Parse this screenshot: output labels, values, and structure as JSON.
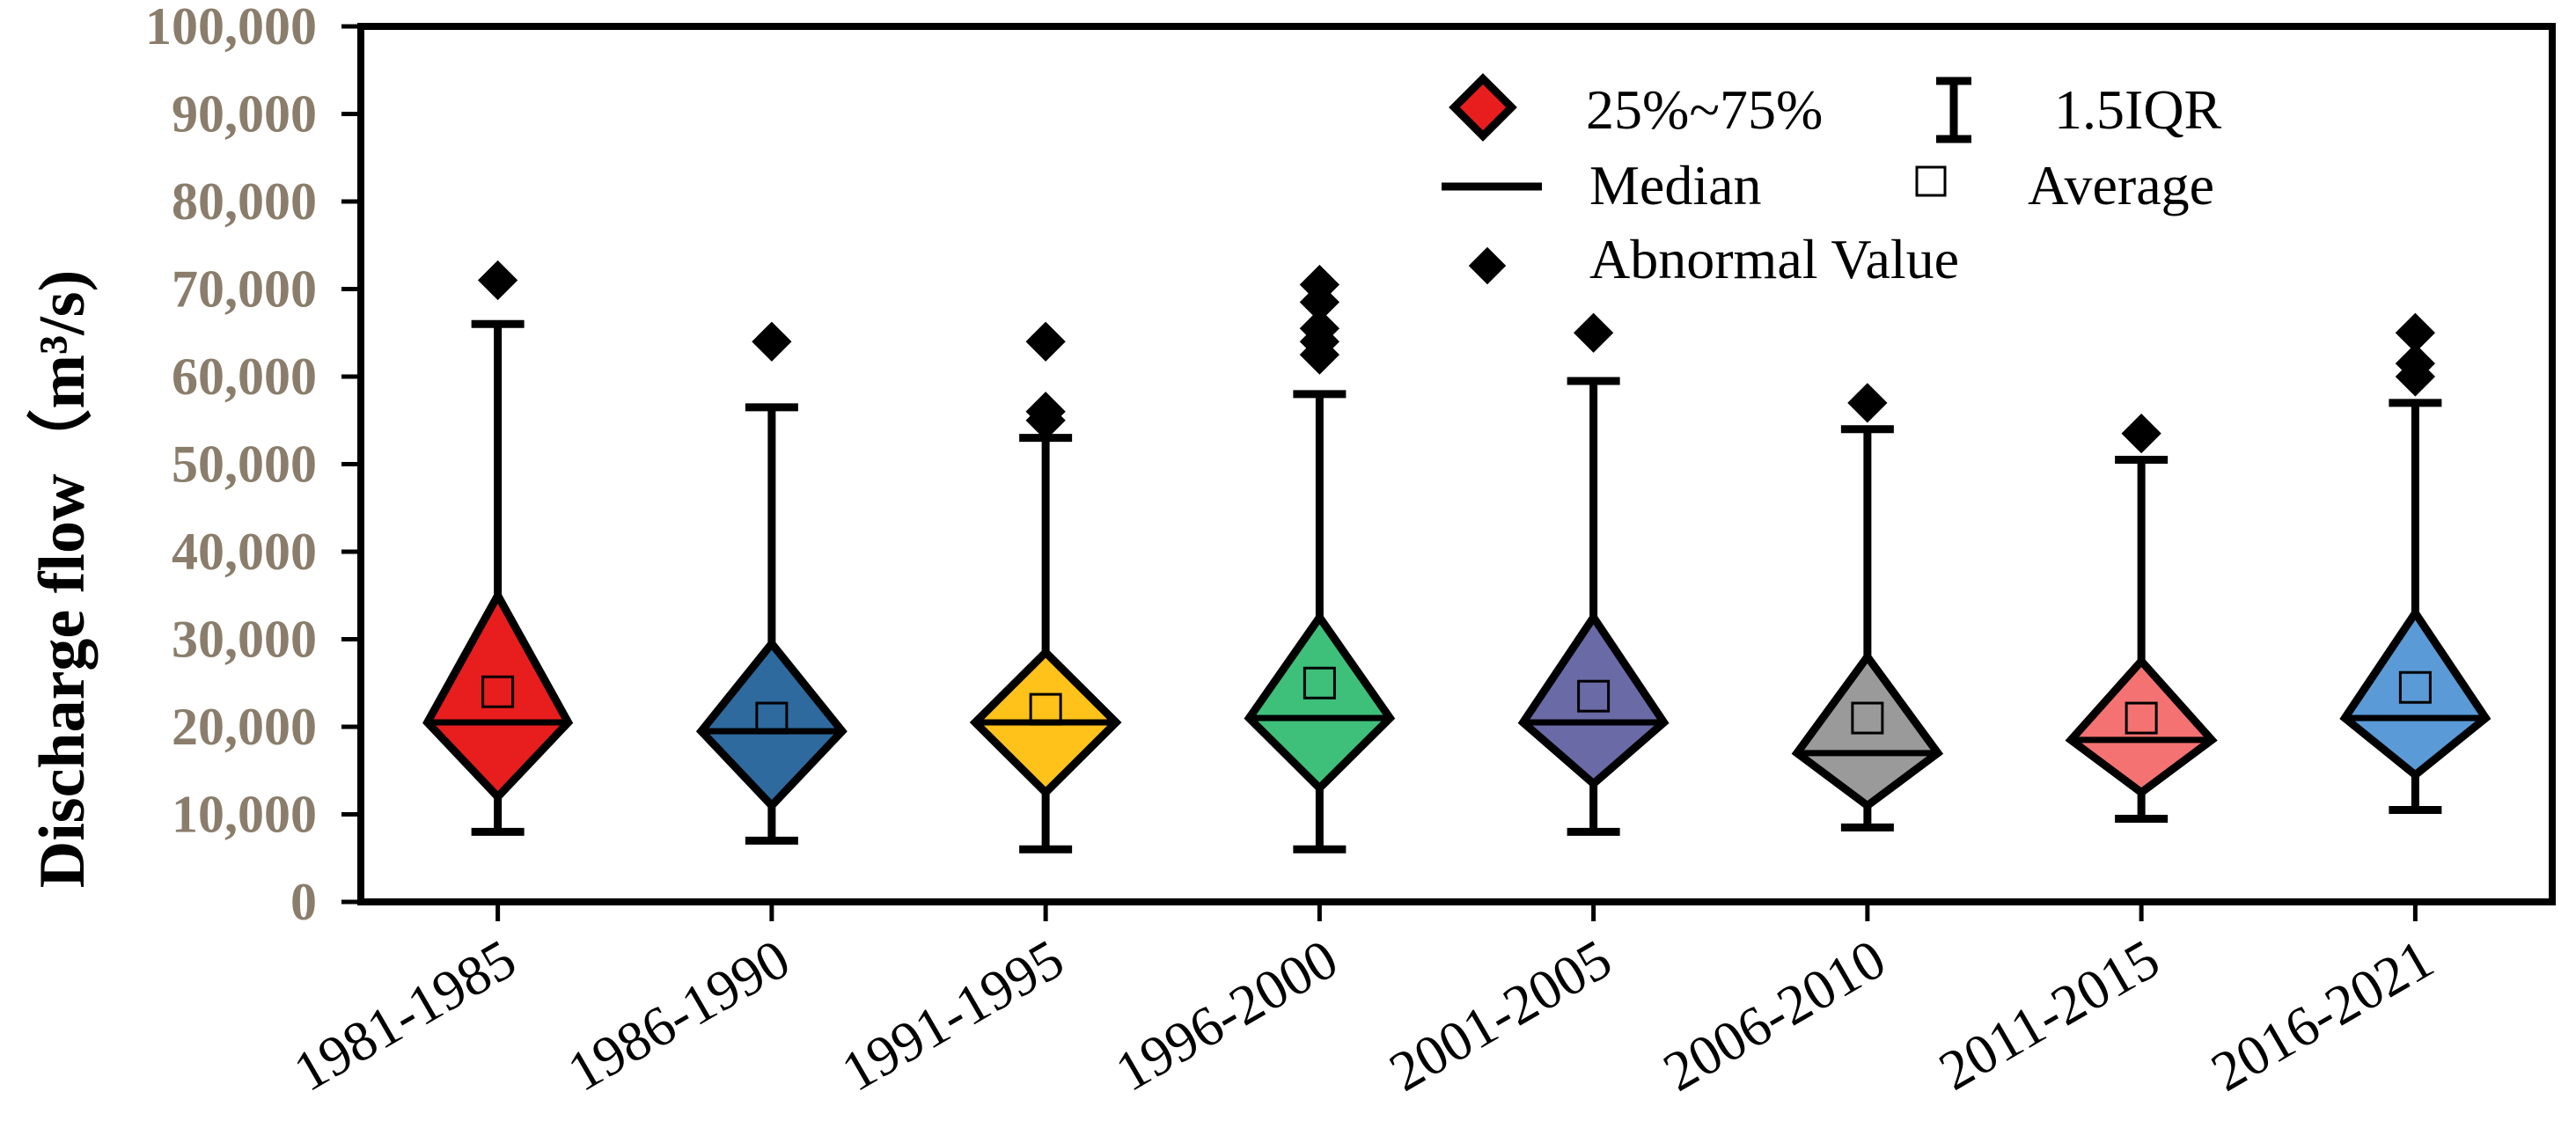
{
  "chart_data": {
    "type": "box",
    "title": "",
    "xlabel": "",
    "ylabel": "Discharge flow（m³/s)",
    "ylim": [
      0,
      100000
    ],
    "yticks": [
      0,
      10000,
      20000,
      30000,
      40000,
      50000,
      60000,
      70000,
      80000,
      90000,
      100000
    ],
    "ytick_labels": [
      "0",
      "10,000",
      "20,000",
      "30,000",
      "40,000",
      "50,000",
      "60,000",
      "70,000",
      "80,000",
      "90,000",
      "100,000"
    ],
    "categories": [
      "1981-1985",
      "1986-1990",
      "1991-1995",
      "1996-2000",
      "2001-2005",
      "2006-2010",
      "2011-2015",
      "2016-2021"
    ],
    "colors": [
      "#e81e1e",
      "#2e6a9e",
      "#ffc21a",
      "#3ec07a",
      "#6a6aa6",
      "#9a9a9a",
      "#f57272",
      "#5a9ad6"
    ],
    "boxes": [
      {
        "category": "1981-1985",
        "whisker_low": 8000,
        "q1": 12000,
        "median": 20500,
        "q3": 35000,
        "whisker_high": 66000,
        "mean": 24000,
        "outliers": [
          71000
        ]
      },
      {
        "category": "1986-1990",
        "whisker_low": 7000,
        "q1": 11000,
        "median": 19500,
        "q3": 29500,
        "whisker_high": 56500,
        "mean": 21000,
        "outliers": [
          64000
        ]
      },
      {
        "category": "1991-1995",
        "whisker_low": 6000,
        "q1": 12500,
        "median": 20500,
        "q3": 28500,
        "whisker_high": 53000,
        "mean": 22000,
        "outliers": [
          55000,
          56000,
          64000
        ]
      },
      {
        "category": "1996-2000",
        "whisker_low": 6000,
        "q1": 13000,
        "median": 21000,
        "q3": 32500,
        "whisker_high": 58000,
        "mean": 25000,
        "outliers": [
          62500,
          64000,
          65500,
          68500,
          70500
        ]
      },
      {
        "category": "2001-2005",
        "whisker_low": 8000,
        "q1": 13500,
        "median": 20500,
        "q3": 32500,
        "whisker_high": 59500,
        "mean": 23500,
        "outliers": [
          65000
        ]
      },
      {
        "category": "2006-2010",
        "whisker_low": 8500,
        "q1": 11000,
        "median": 17000,
        "q3": 28000,
        "whisker_high": 54000,
        "mean": 21000,
        "outliers": [
          57000
        ]
      },
      {
        "category": "2011-2015",
        "whisker_low": 9500,
        "q1": 12500,
        "median": 18500,
        "q3": 27500,
        "whisker_high": 50500,
        "mean": 21000,
        "outliers": [
          53500
        ]
      },
      {
        "category": "2016-2021",
        "whisker_low": 10500,
        "q1": 14500,
        "median": 21000,
        "q3": 33000,
        "whisker_high": 57000,
        "mean": 24500,
        "outliers": [
          60000,
          61500,
          65000
        ]
      }
    ],
    "legend": {
      "position": "top-right",
      "items": {
        "box": "25%~75%",
        "whisker": "1.5IQR",
        "median": "Median",
        "mean": "Average",
        "outlier": "Abnormal Value"
      }
    },
    "grid": false
  }
}
